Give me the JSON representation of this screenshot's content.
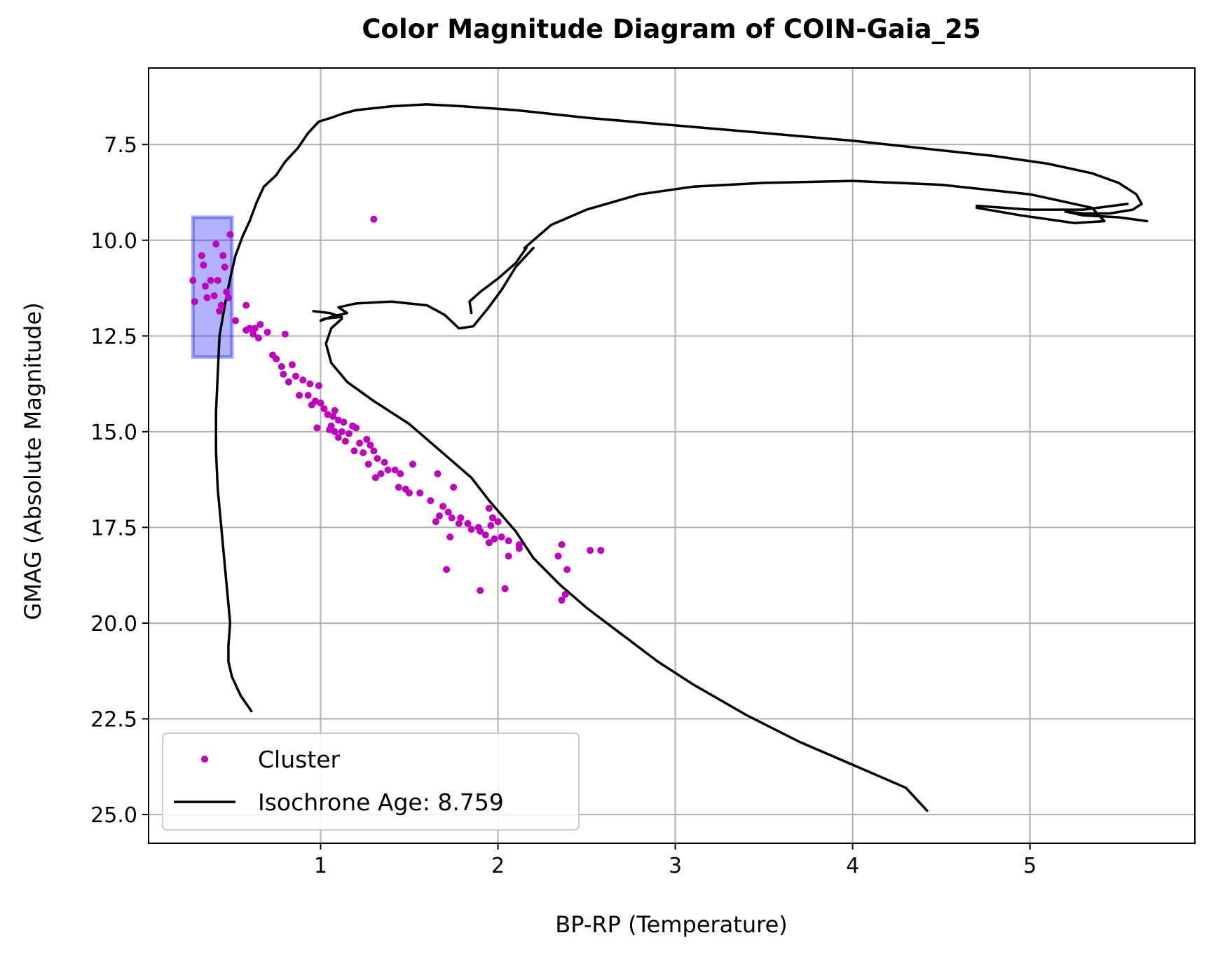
{
  "chart_data": {
    "type": "scatter",
    "title": "Color Magnitude Diagram of COIN-Gaia_25",
    "xlabel": "BP-RP (Temperature)",
    "ylabel": "GMAG (Absolute Magnitude)",
    "xlim": [
      0.03,
      5.93
    ],
    "ylim": [
      25.75,
      5.5
    ],
    "y_inverted": true,
    "grid": true,
    "x_ticks": [
      {
        "value": 1,
        "label": "1"
      },
      {
        "value": 2,
        "label": "2"
      },
      {
        "value": 3,
        "label": "3"
      },
      {
        "value": 4,
        "label": "4"
      },
      {
        "value": 5,
        "label": "5"
      }
    ],
    "y_ticks": [
      {
        "value": 7.5,
        "label": "7.5"
      },
      {
        "value": 10.0,
        "label": "10.0"
      },
      {
        "value": 12.5,
        "label": "12.5"
      },
      {
        "value": 15.0,
        "label": "15.0"
      },
      {
        "value": 17.5,
        "label": "17.5"
      },
      {
        "value": 20.0,
        "label": "20.0"
      },
      {
        "value": 22.5,
        "label": "22.5"
      },
      {
        "value": 25.0,
        "label": "25.0"
      }
    ],
    "legend": {
      "placement": "lower-left",
      "entries": [
        {
          "label": "Cluster",
          "kind": "marker",
          "color": "#bf00bf"
        },
        {
          "label": "Isochrone Age: 8.759",
          "kind": "line",
          "color": "#000000"
        }
      ]
    },
    "highlight_region": {
      "x": [
        0.28,
        0.5
      ],
      "y": [
        9.4,
        13.05
      ],
      "color": "#0000ff"
    },
    "series": [
      {
        "name": "Cluster",
        "type": "scatter",
        "color": "#bf00bf",
        "points": [
          [
            1.3,
            9.45
          ],
          [
            0.49,
            9.85
          ],
          [
            0.41,
            10.1
          ],
          [
            0.33,
            10.4
          ],
          [
            0.45,
            10.4
          ],
          [
            0.34,
            10.65
          ],
          [
            0.46,
            10.7
          ],
          [
            0.38,
            11.05
          ],
          [
            0.42,
            11.05
          ],
          [
            0.28,
            11.05
          ],
          [
            0.35,
            11.2
          ],
          [
            0.47,
            11.35
          ],
          [
            0.4,
            11.45
          ],
          [
            0.36,
            11.5
          ],
          [
            0.48,
            11.5
          ],
          [
            0.29,
            11.6
          ],
          [
            0.44,
            11.7
          ],
          [
            0.58,
            11.7
          ],
          [
            0.43,
            11.85
          ],
          [
            0.52,
            12.1
          ],
          [
            0.58,
            12.35
          ],
          [
            0.6,
            12.3
          ],
          [
            0.63,
            12.3
          ],
          [
            0.66,
            12.2
          ],
          [
            0.62,
            12.45
          ],
          [
            0.65,
            12.55
          ],
          [
            0.7,
            12.4
          ],
          [
            0.8,
            12.45
          ],
          [
            0.73,
            13.0
          ],
          [
            0.75,
            13.1
          ],
          [
            0.78,
            13.3
          ],
          [
            0.84,
            13.25
          ],
          [
            0.79,
            13.5
          ],
          [
            0.82,
            13.7
          ],
          [
            0.86,
            13.55
          ],
          [
            0.9,
            13.65
          ],
          [
            0.94,
            13.75
          ],
          [
            0.99,
            13.8
          ],
          [
            0.88,
            14.05
          ],
          [
            0.93,
            14.05
          ],
          [
            0.97,
            14.2
          ],
          [
            0.95,
            14.3
          ],
          [
            1.0,
            14.25
          ],
          [
            1.02,
            14.4
          ],
          [
            1.04,
            14.55
          ],
          [
            1.08,
            14.45
          ],
          [
            1.07,
            14.6
          ],
          [
            1.1,
            14.7
          ],
          [
            1.13,
            14.75
          ],
          [
            1.06,
            14.85
          ],
          [
            0.98,
            14.9
          ],
          [
            1.05,
            14.95
          ],
          [
            1.08,
            15.0
          ],
          [
            1.12,
            15.0
          ],
          [
            1.16,
            15.05
          ],
          [
            1.18,
            14.85
          ],
          [
            1.2,
            14.9
          ],
          [
            1.1,
            15.15
          ],
          [
            1.14,
            15.25
          ],
          [
            1.22,
            15.3
          ],
          [
            1.26,
            15.2
          ],
          [
            1.28,
            15.35
          ],
          [
            1.19,
            15.5
          ],
          [
            1.24,
            15.55
          ],
          [
            1.3,
            15.5
          ],
          [
            1.32,
            15.7
          ],
          [
            1.36,
            15.8
          ],
          [
            1.38,
            16.0
          ],
          [
            1.34,
            16.1
          ],
          [
            1.42,
            16.0
          ],
          [
            1.45,
            16.1
          ],
          [
            1.27,
            15.85
          ],
          [
            1.31,
            16.2
          ],
          [
            1.52,
            15.85
          ],
          [
            1.44,
            16.45
          ],
          [
            1.48,
            16.5
          ],
          [
            1.5,
            16.6
          ],
          [
            1.56,
            16.6
          ],
          [
            1.66,
            16.1
          ],
          [
            1.75,
            16.45
          ],
          [
            1.62,
            16.8
          ],
          [
            1.69,
            16.95
          ],
          [
            1.72,
            17.1
          ],
          [
            1.67,
            17.2
          ],
          [
            1.79,
            17.25
          ],
          [
            1.74,
            17.25
          ],
          [
            1.65,
            17.35
          ],
          [
            1.78,
            17.4
          ],
          [
            1.83,
            17.4
          ],
          [
            1.89,
            17.5
          ],
          [
            1.85,
            17.55
          ],
          [
            1.9,
            17.6
          ],
          [
            1.93,
            17.7
          ],
          [
            1.96,
            17.45
          ],
          [
            2.0,
            17.35
          ],
          [
            1.95,
            17.0
          ],
          [
            1.97,
            17.25
          ],
          [
            1.98,
            17.8
          ],
          [
            2.02,
            17.75
          ],
          [
            2.06,
            17.85
          ],
          [
            1.95,
            17.9
          ],
          [
            2.12,
            17.95
          ],
          [
            2.12,
            18.05
          ],
          [
            2.06,
            18.25
          ],
          [
            1.73,
            17.75
          ],
          [
            1.71,
            18.6
          ],
          [
            1.9,
            19.15
          ],
          [
            2.04,
            19.1
          ],
          [
            2.36,
            17.95
          ],
          [
            2.34,
            18.25
          ],
          [
            2.39,
            18.6
          ],
          [
            2.52,
            18.1
          ],
          [
            2.58,
            18.1
          ],
          [
            2.38,
            19.25
          ],
          [
            2.36,
            19.4
          ]
        ]
      },
      {
        "name": "Isochrone Age: 8.759",
        "type": "line",
        "color": "#000000",
        "segments": [
          [
            [
              0.61,
              22.3
            ],
            [
              0.55,
              21.9
            ],
            [
              0.5,
              21.4
            ],
            [
              0.48,
              21.0
            ],
            [
              0.48,
              20.6
            ],
            [
              0.49,
              20.0
            ],
            [
              0.48,
              19.5
            ],
            [
              0.46,
              18.5
            ],
            [
              0.44,
              17.5
            ],
            [
              0.42,
              16.5
            ],
            [
              0.41,
              15.5
            ],
            [
              0.41,
              14.5
            ],
            [
              0.42,
              13.5
            ],
            [
              0.43,
              12.5
            ],
            [
              0.46,
              11.7
            ],
            [
              0.49,
              11.0
            ],
            [
              0.52,
              10.4
            ],
            [
              0.56,
              9.9
            ],
            [
              0.6,
              9.5
            ],
            [
              0.64,
              9.0
            ],
            [
              0.68,
              8.6
            ],
            [
              0.75,
              8.3
            ],
            [
              0.8,
              7.95
            ],
            [
              0.87,
              7.6
            ],
            [
              0.93,
              7.2
            ],
            [
              0.99,
              6.9
            ],
            [
              1.06,
              6.8
            ],
            [
              1.12,
              6.7
            ],
            [
              1.2,
              6.6
            ],
            [
              1.4,
              6.5
            ],
            [
              1.6,
              6.45
            ],
            [
              1.8,
              6.5
            ],
            [
              2.1,
              6.6
            ],
            [
              2.5,
              6.8
            ],
            [
              3.0,
              7.0
            ],
            [
              3.5,
              7.2
            ],
            [
              4.0,
              7.4
            ],
            [
              4.4,
              7.6
            ],
            [
              4.8,
              7.8
            ],
            [
              5.1,
              8.0
            ],
            [
              5.35,
              8.25
            ],
            [
              5.5,
              8.5
            ],
            [
              5.6,
              8.8
            ],
            [
              5.63,
              9.05
            ],
            [
              5.58,
              9.2
            ],
            [
              5.45,
              9.3
            ],
            [
              5.3,
              9.3
            ],
            [
              5.2,
              9.25
            ],
            [
              5.3,
              9.35
            ],
            [
              5.5,
              9.4
            ],
            [
              5.66,
              9.5
            ]
          ],
          [
            [
              5.55,
              9.05
            ],
            [
              5.3,
              9.2
            ],
            [
              5.0,
              9.2
            ],
            [
              4.7,
              9.1
            ]
          ],
          [
            [
              0.96,
              11.85
            ],
            [
              1.05,
              11.9
            ],
            [
              1.12,
              12.0
            ],
            [
              1.02,
              12.05
            ],
            [
              1.0,
              12.1
            ],
            [
              1.06,
              12.0
            ],
            [
              1.15,
              11.9
            ],
            [
              1.1,
              11.75
            ],
            [
              1.2,
              11.65
            ],
            [
              1.4,
              11.6
            ],
            [
              1.6,
              11.7
            ],
            [
              1.7,
              11.95
            ],
            [
              1.78,
              12.3
            ],
            [
              1.86,
              12.25
            ],
            [
              1.94,
              11.8
            ],
            [
              2.02,
              11.3
            ],
            [
              2.1,
              10.7
            ],
            [
              2.2,
              10.2
            ]
          ],
          [
            [
              1.85,
              11.9
            ],
            [
              1.84,
              11.6
            ],
            [
              1.9,
              11.35
            ],
            [
              2.0,
              11.0
            ],
            [
              2.1,
              10.6
            ],
            [
              2.16,
              10.2
            ]
          ],
          [
            [
              2.15,
              10.2
            ],
            [
              2.3,
              9.6
            ],
            [
              2.5,
              9.2
            ],
            [
              2.8,
              8.8
            ],
            [
              3.1,
              8.6
            ],
            [
              3.5,
              8.5
            ],
            [
              4.0,
              8.45
            ],
            [
              4.5,
              8.55
            ],
            [
              5.0,
              8.8
            ],
            [
              5.35,
              9.15
            ],
            [
              5.42,
              9.5
            ],
            [
              5.25,
              9.55
            ],
            [
              4.95,
              9.35
            ],
            [
              4.7,
              9.15
            ]
          ],
          [
            [
              1.12,
              12.05
            ],
            [
              1.06,
              12.3
            ],
            [
              1.03,
              12.7
            ],
            [
              1.06,
              13.2
            ],
            [
              1.15,
              13.7
            ],
            [
              1.3,
              14.2
            ],
            [
              1.5,
              14.8
            ],
            [
              1.7,
              15.6
            ],
            [
              1.85,
              16.2
            ],
            [
              1.95,
              16.8
            ],
            [
              2.1,
              17.6
            ],
            [
              2.2,
              18.3
            ],
            [
              2.35,
              19.0
            ],
            [
              2.5,
              19.6
            ],
            [
              2.7,
              20.3
            ],
            [
              2.9,
              21.0
            ],
            [
              3.1,
              21.6
            ],
            [
              3.4,
              22.4
            ],
            [
              3.7,
              23.1
            ],
            [
              4.0,
              23.7
            ],
            [
              4.3,
              24.3
            ],
            [
              4.42,
              24.9
            ]
          ]
        ]
      }
    ]
  }
}
